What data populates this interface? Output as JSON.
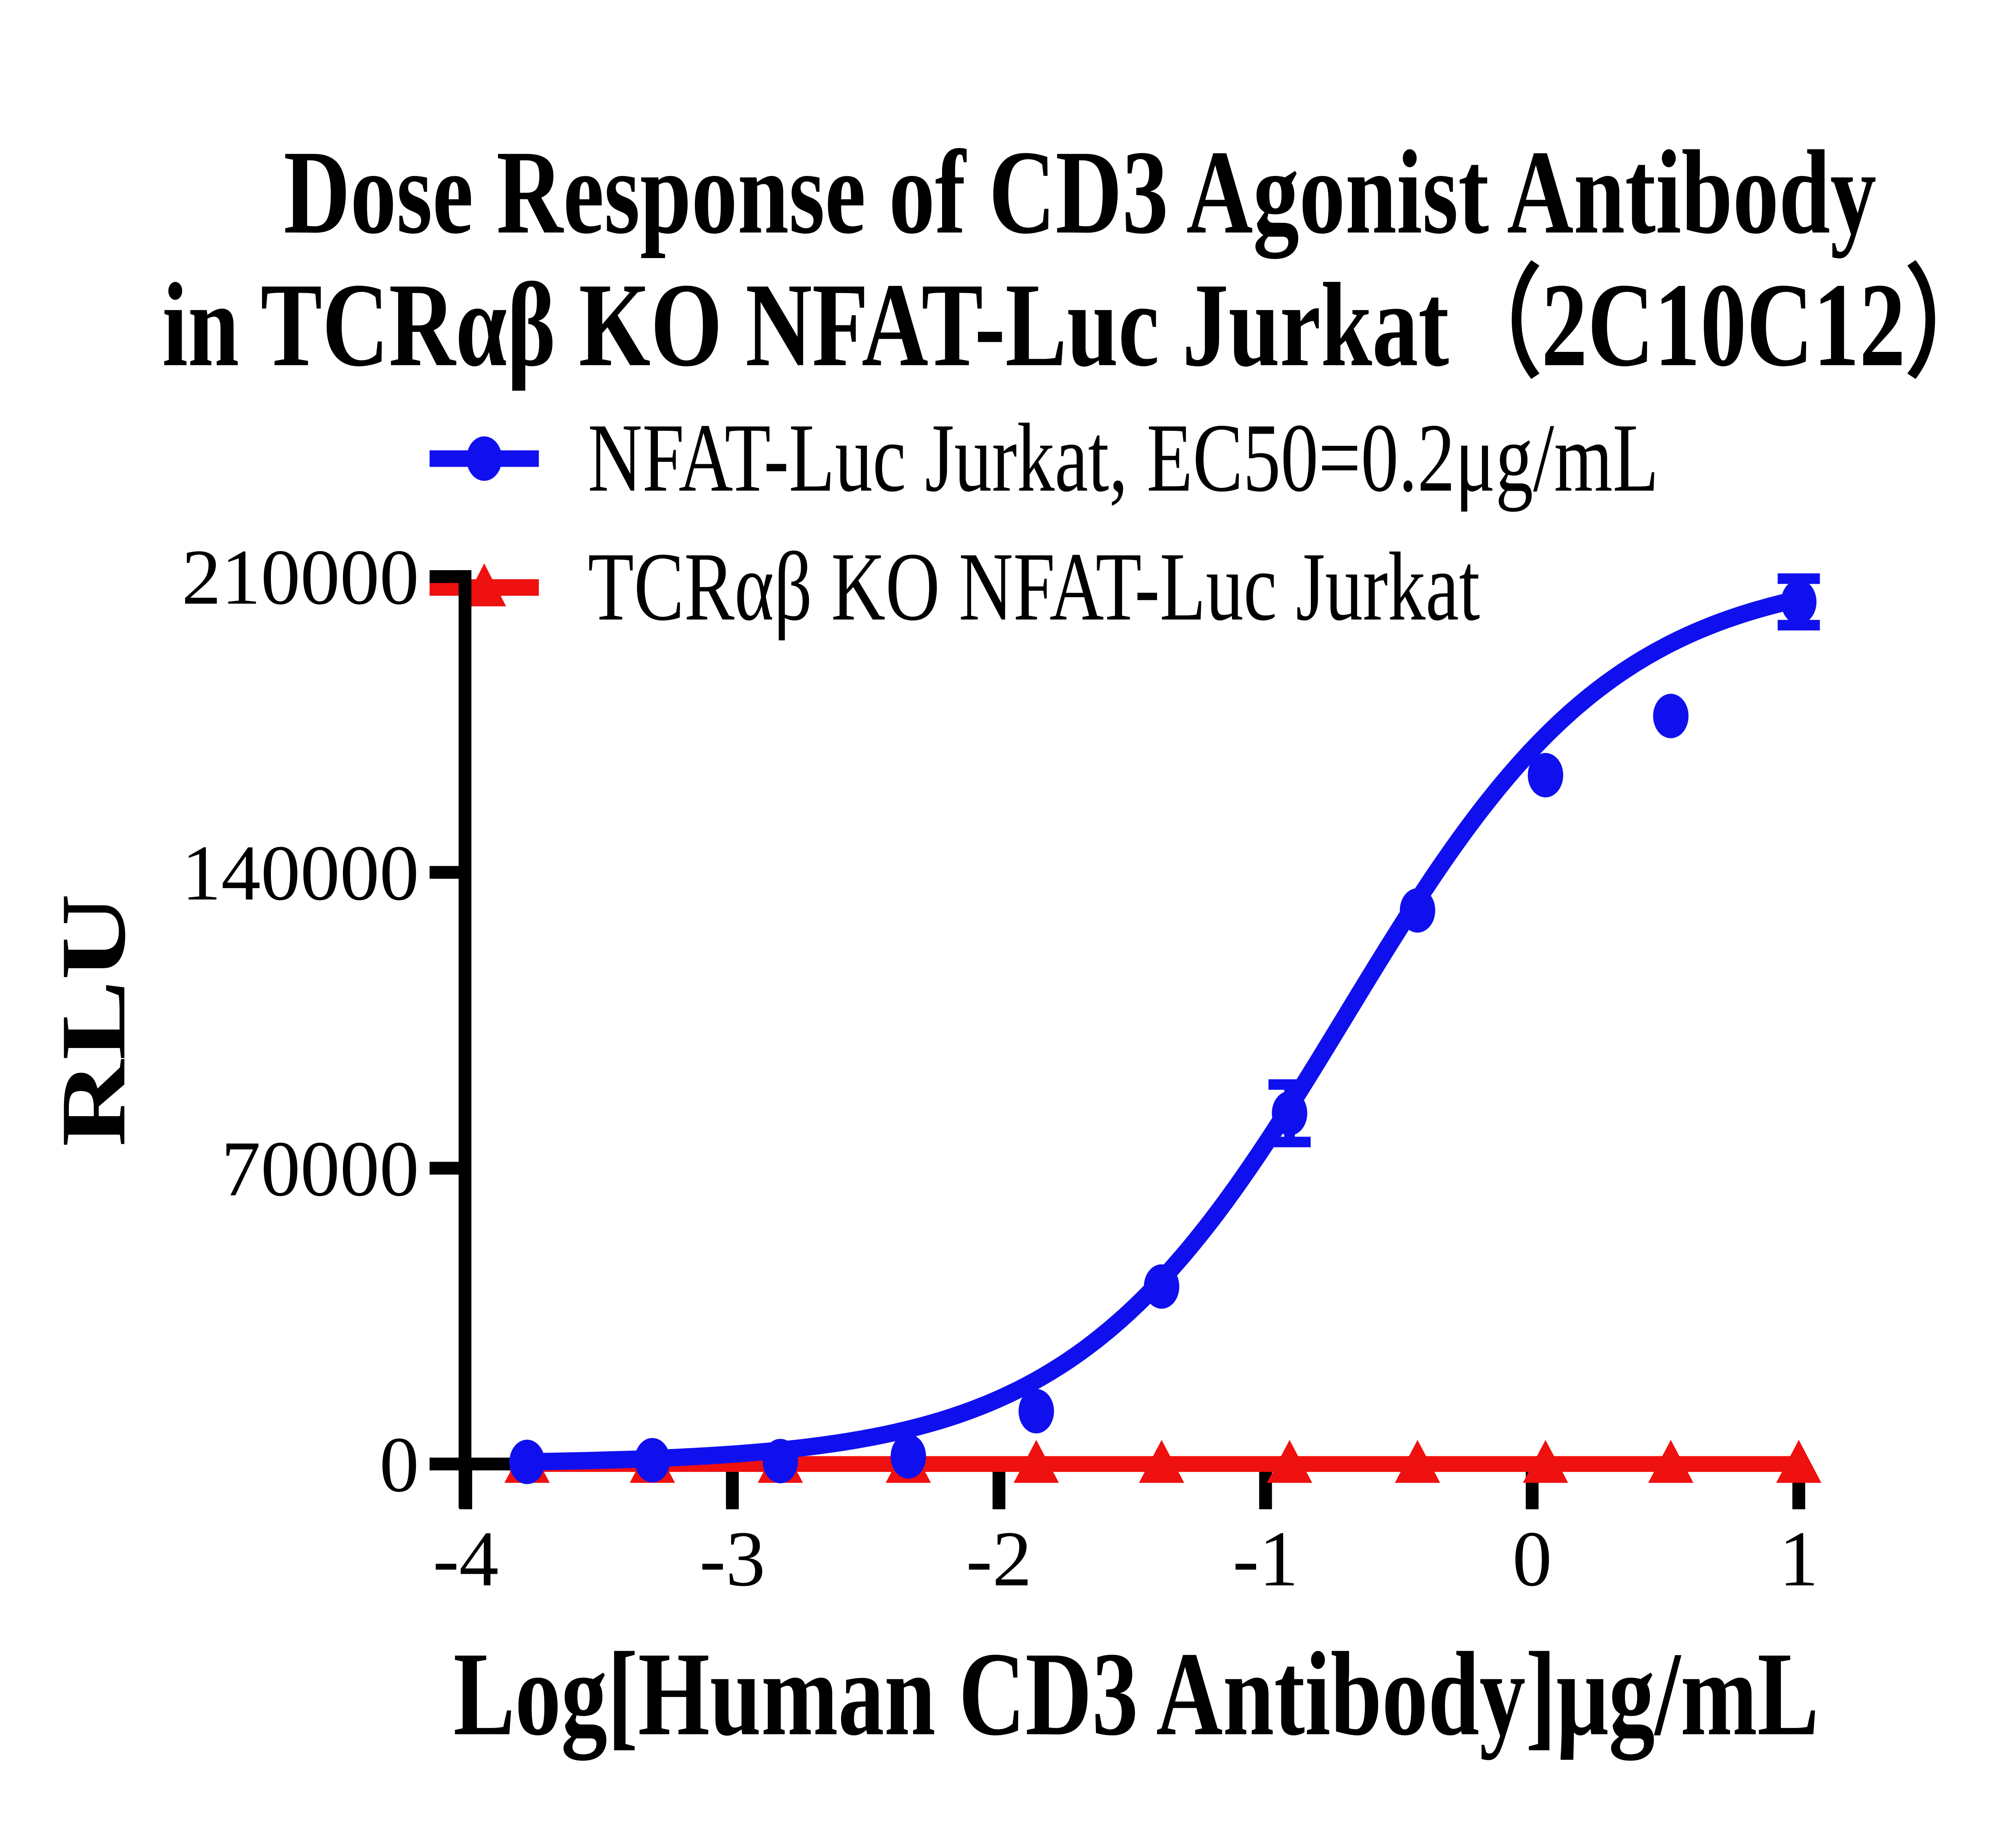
{
  "chart_data": {
    "type": "scatter",
    "title": "Dose Response of CD3 Agonist Antibody in TCRαβ KO NFAT-Luc Jurkat（2C10C12）",
    "title_line1": "Dose Response of CD3 Agonist Antibody",
    "title_line2": "in TCRαβ KO NFAT-Luc Jurkat（2C10C12）",
    "x_axis": {
      "label": "Log[Human CD3 Antibody]μg/mL",
      "ticks": [
        -4,
        -3,
        -2,
        -1,
        0,
        1
      ],
      "range": [
        -4,
        1
      ]
    },
    "y_axis": {
      "label": "RLU",
      "ticks": [
        0,
        70000,
        140000,
        210000
      ],
      "range": [
        0,
        210000
      ]
    },
    "legend": [
      {
        "label": "NFAT-Luc Jurkat, EC50=0.2μg/mL",
        "color": "#1010EF",
        "marker": "circle"
      },
      {
        "label": "TCRαβ KO NFAT-Luc Jurkat",
        "color": "#EF1010",
        "marker": "triangle"
      }
    ],
    "x": [
      -3.77,
      -3.3,
      -2.82,
      -2.34,
      -1.86,
      -1.39,
      -0.91,
      -0.43,
      0.05,
      0.52,
      1.0
    ],
    "series": [
      {
        "name": "NFAT-Luc Jurkat",
        "color": "#1010EF",
        "marker": "circle",
        "values": [
          500,
          900,
          700,
          1800,
          12500,
          42000,
          83000,
          131000,
          163000,
          177000,
          204000
        ],
        "errors": [
          0,
          0,
          0,
          0,
          0,
          0,
          6800,
          0,
          0,
          0,
          5500
        ]
      },
      {
        "name": "TCRαβ KO NFAT-Luc Jurkat",
        "color": "#EF1010",
        "marker": "triangle",
        "values": [
          0,
          0,
          0,
          0,
          0,
          0,
          0,
          0,
          0,
          0,
          0
        ],
        "errors": [
          0,
          0,
          0,
          0,
          0,
          0,
          0,
          0,
          0,
          0,
          0
        ]
      }
    ],
    "fit": {
      "model": "4PL",
      "bottom": 0,
      "top": 212000,
      "log_ec50": -0.7,
      "hill": 0.85,
      "ec50_label": "EC50=0.2μg/mL"
    },
    "colors": {
      "blue": "#1010EF",
      "red": "#EF1010",
      "axis": "#000000"
    },
    "grid": false,
    "legend_position": "top"
  }
}
